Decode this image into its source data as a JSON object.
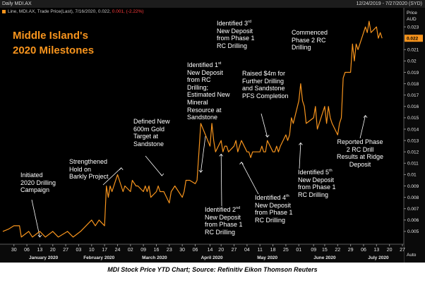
{
  "header": {
    "left": "Daily MDI.AX",
    "right": "12/24/2019 - 7/27/2020 (SYD)"
  },
  "legend": {
    "text": "Line, MDI.AX, Trade Price(Last), 7/16/2020, 0.022,",
    "change": "0.001, (-2.22%)"
  },
  "title_line1": "Middle Island's",
  "title_line2": "2020 Milestones",
  "caption": "MDI Stock Price YTD Chart; Source: Refinitiv Eikon Thomson Reuters",
  "annotations": {
    "a1": [
      "Initiated",
      "2020 Drilling",
      "Campaign"
    ],
    "a2": [
      "Strengthened",
      "Hold on",
      "Barkly Project"
    ],
    "a3": [
      "Defined New",
      "600m Gold",
      "Target at",
      "Sandstone"
    ],
    "a4": {
      "l1": "Identified 1",
      "sup": "st",
      "rest": [
        "New Deposit",
        "from RC",
        "Drilling;",
        "Estimated New",
        "Mineral",
        "Resource at",
        "Sandstone"
      ]
    },
    "a5": {
      "l1": "Identified 3",
      "sup": "rd",
      "rest": [
        "New Deposit",
        "from Phase 1",
        "RC Drilling"
      ]
    },
    "a6": [
      "Raised $4m for",
      "Further Drilling",
      "and Sandstone",
      "PFS Completion"
    ],
    "a7": [
      "Commenced",
      "Phase 2 RC",
      "Drilling"
    ],
    "a8": {
      "l1": "Identified 2",
      "sup": "nd",
      "rest": [
        "New Deposit",
        "from Phase 1",
        "RC Drilling"
      ]
    },
    "a9": {
      "l1": "Identified 4",
      "sup": "th",
      "rest": [
        "New Deposit",
        "from Phase 1",
        "RC Drilling"
      ]
    },
    "a10": {
      "l1": "Identified 5",
      "sup": "th",
      "rest": [
        "New Deposit",
        "from Phase 1",
        "RC Drilling"
      ]
    },
    "a11": [
      "Reported Phase",
      "2 RC Drill",
      "Results at Ridge",
      "Deposit"
    ]
  },
  "axis": {
    "price_label": "Price",
    "currency_label": "AUD",
    "auto_label": "Auto",
    "last_value_tag": "0.022"
  },
  "colors": {
    "line": "#f7941d",
    "background": "#000000",
    "title": "#f7941d",
    "tag_bg": "#f7941d"
  },
  "chart_data": {
    "type": "line",
    "title": "Middle Island's 2020 Milestones",
    "series_name": "MDI.AX Trade Price(Last)",
    "ylim": [
      0.004,
      0.024
    ],
    "y_ticks": [
      0.005,
      0.006,
      0.007,
      0.008,
      0.009,
      0.01,
      0.011,
      0.012,
      0.013,
      0.014,
      0.015,
      0.016,
      0.017,
      0.018,
      0.019,
      0.02,
      0.021,
      0.023
    ],
    "y_tick_labels": [
      "0.005",
      "0.006",
      "0.007",
      "0.008",
      "0.009",
      "0.01",
      "0.011",
      "0.012",
      "0.013",
      "0.014",
      "0.015",
      "0.016",
      "0.017",
      "0.018",
      "0.019",
      "0.02",
      "0.021",
      "0.023"
    ],
    "x_tick_labels": [
      "30",
      "06",
      "13",
      "20",
      "27",
      "03",
      "10",
      "17",
      "24",
      "02",
      "09",
      "16",
      "23",
      "30",
      "06",
      "14",
      "20",
      "27",
      "04",
      "11",
      "18",
      "25",
      "01",
      "09",
      "15",
      "22",
      "29",
      "06",
      "13",
      "20",
      "27"
    ],
    "x_tick_dates": [
      "2019-12-30",
      "2020-01-06",
      "2020-01-13",
      "2020-01-20",
      "2020-01-27",
      "2020-02-03",
      "2020-02-10",
      "2020-02-17",
      "2020-02-24",
      "2020-03-02",
      "2020-03-09",
      "2020-03-16",
      "2020-03-23",
      "2020-03-30",
      "2020-04-06",
      "2020-04-14",
      "2020-04-20",
      "2020-04-27",
      "2020-05-04",
      "2020-05-11",
      "2020-05-18",
      "2020-05-25",
      "2020-06-01",
      "2020-06-09",
      "2020-06-15",
      "2020-06-22",
      "2020-06-29",
      "2020-07-06",
      "2020-07-13",
      "2020-07-20",
      "2020-07-27"
    ],
    "months": [
      {
        "label": "January 2020",
        "date": "2020-01-15"
      },
      {
        "label": "February 2020",
        "date": "2020-02-14"
      },
      {
        "label": "March 2020",
        "date": "2020-03-15"
      },
      {
        "label": "April 2020",
        "date": "2020-04-15"
      },
      {
        "label": "May 2020",
        "date": "2020-05-15"
      },
      {
        "label": "June 2020",
        "date": "2020-06-15"
      },
      {
        "label": "July 2020",
        "date": "2020-07-14"
      }
    ],
    "points": [
      [
        "2019-12-24",
        0.005
      ],
      [
        "2019-12-27",
        0.0052
      ],
      [
        "2019-12-30",
        0.0055
      ],
      [
        "2020-01-02",
        0.0055
      ],
      [
        "2020-01-03",
        0.0045
      ],
      [
        "2020-01-07",
        0.005
      ],
      [
        "2020-01-09",
        0.0045
      ],
      [
        "2020-01-13",
        0.005
      ],
      [
        "2020-01-16",
        0.0045
      ],
      [
        "2020-01-20",
        0.005
      ],
      [
        "2020-01-23",
        0.0045
      ],
      [
        "2020-01-28",
        0.005
      ],
      [
        "2020-01-31",
        0.0045
      ],
      [
        "2020-02-04",
        0.005
      ],
      [
        "2020-02-07",
        0.0055
      ],
      [
        "2020-02-10",
        0.006
      ],
      [
        "2020-02-12",
        0.0055
      ],
      [
        "2020-02-14",
        0.006
      ],
      [
        "2020-02-17",
        0.0055
      ],
      [
        "2020-02-18",
        0.009
      ],
      [
        "2020-02-19",
        0.008
      ],
      [
        "2020-02-20",
        0.009
      ],
      [
        "2020-02-21",
        0.0085
      ],
      [
        "2020-02-24",
        0.01
      ],
      [
        "2020-02-25",
        0.0095
      ],
      [
        "2020-02-26",
        0.009
      ],
      [
        "2020-02-27",
        0.0085
      ],
      [
        "2020-02-28",
        0.009
      ],
      [
        "2020-03-02",
        0.0085
      ],
      [
        "2020-03-03",
        0.0095
      ],
      [
        "2020-03-05",
        0.009
      ],
      [
        "2020-03-06",
        0.009
      ],
      [
        "2020-03-09",
        0.0085
      ],
      [
        "2020-03-10",
        0.009
      ],
      [
        "2020-03-11",
        0.0085
      ],
      [
        "2020-03-12",
        0.009
      ],
      [
        "2020-03-13",
        0.008
      ],
      [
        "2020-03-16",
        0.0085
      ],
      [
        "2020-03-17",
        0.009
      ],
      [
        "2020-03-18",
        0.0085
      ],
      [
        "2020-03-20",
        0.0085
      ],
      [
        "2020-03-23",
        0.0075
      ],
      [
        "2020-03-24",
        0.0085
      ],
      [
        "2020-03-26",
        0.009
      ],
      [
        "2020-03-30",
        0.008
      ],
      [
        "2020-03-31",
        0.0085
      ],
      [
        "2020-04-01",
        0.0095
      ],
      [
        "2020-04-03",
        0.0095
      ],
      [
        "2020-04-06",
        0.0092
      ],
      [
        "2020-04-07",
        0.0095
      ],
      [
        "2020-04-08",
        0.012
      ],
      [
        "2020-04-09",
        0.0145
      ],
      [
        "2020-04-14",
        0.0125
      ],
      [
        "2020-04-15",
        0.0145
      ],
      [
        "2020-04-16",
        0.013
      ],
      [
        "2020-04-17",
        0.012
      ],
      [
        "2020-04-20",
        0.013
      ],
      [
        "2020-04-21",
        0.012
      ],
      [
        "2020-04-22",
        0.0125
      ],
      [
        "2020-04-23",
        0.0125
      ],
      [
        "2020-04-24",
        0.012
      ],
      [
        "2020-04-27",
        0.0125
      ],
      [
        "2020-04-28",
        0.013
      ],
      [
        "2020-04-29",
        0.012
      ],
      [
        "2020-04-30",
        0.0125
      ],
      [
        "2020-05-01",
        0.013
      ],
      [
        "2020-05-04",
        0.012
      ],
      [
        "2020-05-05",
        0.012
      ],
      [
        "2020-05-06",
        0.0115
      ],
      [
        "2020-05-07",
        0.012
      ],
      [
        "2020-05-08",
        0.012
      ],
      [
        "2020-05-11",
        0.012
      ],
      [
        "2020-05-12",
        0.0125
      ],
      [
        "2020-05-13",
        0.012
      ],
      [
        "2020-05-14",
        0.012
      ],
      [
        "2020-05-15",
        0.013
      ],
      [
        "2020-05-18",
        0.012
      ],
      [
        "2020-05-19",
        0.012
      ],
      [
        "2020-05-20",
        0.0125
      ],
      [
        "2020-05-21",
        0.012
      ],
      [
        "2020-05-22",
        0.0125
      ],
      [
        "2020-05-25",
        0.0135
      ],
      [
        "2020-05-26",
        0.013
      ],
      [
        "2020-05-27",
        0.0135
      ],
      [
        "2020-05-28",
        0.015
      ],
      [
        "2020-05-29",
        0.0145
      ],
      [
        "2020-06-01",
        0.0165
      ],
      [
        "2020-06-02",
        0.018
      ],
      [
        "2020-06-03",
        0.0165
      ],
      [
        "2020-06-04",
        0.016
      ],
      [
        "2020-06-05",
        0.0145
      ],
      [
        "2020-06-09",
        0.015
      ],
      [
        "2020-06-10",
        0.016
      ],
      [
        "2020-06-11",
        0.014
      ],
      [
        "2020-06-12",
        0.0145
      ],
      [
        "2020-06-15",
        0.016
      ],
      [
        "2020-06-16",
        0.0145
      ],
      [
        "2020-06-17",
        0.016
      ],
      [
        "2020-06-18",
        0.015
      ],
      [
        "2020-06-19",
        0.0145
      ],
      [
        "2020-06-22",
        0.0135
      ],
      [
        "2020-06-23",
        0.0145
      ],
      [
        "2020-06-24",
        0.015
      ],
      [
        "2020-06-25",
        0.0185
      ],
      [
        "2020-06-26",
        0.019
      ],
      [
        "2020-06-29",
        0.019
      ],
      [
        "2020-06-30",
        0.0215
      ],
      [
        "2020-07-01",
        0.02
      ],
      [
        "2020-07-02",
        0.0215
      ],
      [
        "2020-07-03",
        0.021
      ],
      [
        "2020-07-06",
        0.0225
      ],
      [
        "2020-07-07",
        0.023
      ],
      [
        "2020-07-08",
        0.0225
      ],
      [
        "2020-07-09",
        0.0235
      ],
      [
        "2020-07-10",
        0.0225
      ],
      [
        "2020-07-13",
        0.023
      ],
      [
        "2020-07-14",
        0.022
      ],
      [
        "2020-07-15",
        0.0225
      ],
      [
        "2020-07-16",
        0.022
      ]
    ],
    "annotation_anchors": [
      {
        "date": "2020-01-13",
        "value": 0.0045
      },
      {
        "date": "2020-02-26",
        "value": 0.0106
      },
      {
        "date": "2020-03-19",
        "value": 0.0099
      },
      {
        "date": "2020-04-09",
        "value": 0.0102
      },
      {
        "date": "2020-05-15",
        "value": 0.0133
      },
      {
        "date": "2020-04-20",
        "value": 0.0118
      },
      {
        "date": "2020-05-01",
        "value": 0.0111
      },
      {
        "date": "2020-06-02",
        "value": 0.0128
      },
      {
        "date": "2020-07-07",
        "value": 0.0152
      }
    ]
  }
}
